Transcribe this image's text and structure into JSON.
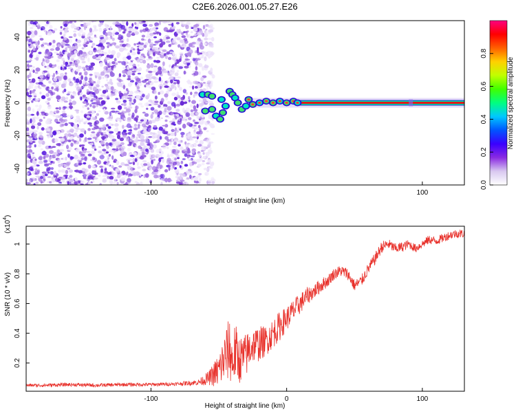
{
  "title": "C2E6.2026.001.05.27.E26",
  "chart_data": [
    {
      "type": "heatmap",
      "name": "spectrogram",
      "xlabel": "Height of straight line (km)",
      "ylabel": "Frequency (Hz)",
      "xlim": [
        -192,
        131
      ],
      "ylim": [
        -50,
        50
      ],
      "x_ticks": [
        -100,
        100
      ],
      "y_ticks": [
        -40,
        -20,
        0,
        20,
        40
      ],
      "description_noise_region_end_km": -57,
      "signal_line_frequency_hz": 0,
      "colorbar": {
        "label": "Normalized spectral amplitude",
        "range": [
          0,
          1
        ],
        "ticks": [
          "0.0",
          "0.2",
          "0.4",
          "0.6",
          "0.8"
        ],
        "colors": [
          "#ffffff",
          "#d8c8f0",
          "#8a2be2",
          "#3a00ff",
          "#0055ff",
          "#00c8ff",
          "#00ff80",
          "#40ff00",
          "#c0ff00",
          "#ffd000",
          "#ff6000",
          "#ff0000",
          "#ff0080"
        ]
      },
      "blobs": [
        {
          "x": -62,
          "y": 5
        },
        {
          "x": -58,
          "y": 5
        },
        {
          "x": -55,
          "y": 4
        },
        {
          "x": -48,
          "y": 2
        },
        {
          "x": -60,
          "y": -5
        },
        {
          "x": -55,
          "y": -4
        },
        {
          "x": -52,
          "y": -8
        },
        {
          "x": -49,
          "y": -10
        },
        {
          "x": -47,
          "y": -6
        },
        {
          "x": -45,
          "y": -2
        },
        {
          "x": -42,
          "y": 7
        },
        {
          "x": -40,
          "y": 5
        },
        {
          "x": -38,
          "y": 3
        },
        {
          "x": -36,
          "y": 0
        },
        {
          "x": -33,
          "y": -4
        },
        {
          "x": -30,
          "y": -2
        },
        {
          "x": -28,
          "y": 2
        },
        {
          "x": -25,
          "y": -1
        },
        {
          "x": -20,
          "y": 0
        },
        {
          "x": -15,
          "y": 1
        },
        {
          "x": -10,
          "y": 0
        },
        {
          "x": -5,
          "y": 1
        },
        {
          "x": 0,
          "y": 0
        },
        {
          "x": 5,
          "y": 1
        },
        {
          "x": 8,
          "y": 0
        }
      ]
    },
    {
      "type": "line",
      "name": "snr",
      "xlabel": "Height of straight line (km)",
      "ylabel": "SNR (10 * v/v)",
      "exponent_label": "(x10",
      "exponent_power": "4",
      "exponent_close": ")",
      "xlim": [
        -192,
        131
      ],
      "ylim": [
        0.01,
        1.12
      ],
      "x_ticks": [
        -100,
        0,
        100
      ],
      "y_ticks": [
        0.2,
        0.4,
        0.6,
        0.8,
        1
      ],
      "series": [
        {
          "name": "SNR",
          "color": "#e8302a",
          "x": [
            -192,
            -180,
            -160,
            -140,
            -120,
            -100,
            -80,
            -65,
            -57,
            -50,
            -45,
            -42,
            -40,
            -38,
            -35,
            -30,
            -27,
            -25,
            -20,
            -15,
            -10,
            -5,
            0,
            5,
            10,
            15,
            20,
            25,
            30,
            35,
            40,
            45,
            50,
            55,
            60,
            65,
            70,
            75,
            80,
            85,
            90,
            95,
            100,
            105,
            110,
            115,
            120,
            125,
            131
          ],
          "values": [
            0.05,
            0.05,
            0.055,
            0.05,
            0.055,
            0.055,
            0.06,
            0.07,
            0.1,
            0.15,
            0.25,
            0.3,
            0.2,
            0.28,
            0.22,
            0.25,
            0.3,
            0.32,
            0.33,
            0.35,
            0.4,
            0.45,
            0.5,
            0.55,
            0.6,
            0.65,
            0.68,
            0.72,
            0.75,
            0.8,
            0.82,
            0.8,
            0.72,
            0.75,
            0.83,
            0.9,
            0.98,
            1.0,
            0.97,
            0.98,
            1.0,
            0.97,
            1.0,
            1.03,
            1.02,
            1.04,
            1.06,
            1.07,
            1.07
          ],
          "noise": [
            0.01,
            0.012,
            0.012,
            0.012,
            0.012,
            0.012,
            0.012,
            0.02,
            0.05,
            0.12,
            0.18,
            0.22,
            0.18,
            0.2,
            0.16,
            0.15,
            0.14,
            0.12,
            0.12,
            0.1,
            0.1,
            0.1,
            0.08,
            0.08,
            0.07,
            0.06,
            0.05,
            0.05,
            0.04,
            0.04,
            0.04,
            0.04,
            0.04,
            0.04,
            0.04,
            0.04,
            0.04,
            0.035,
            0.035,
            0.035,
            0.03,
            0.03,
            0.03,
            0.03,
            0.03,
            0.03,
            0.03,
            0.03,
            0.03
          ]
        }
      ]
    }
  ]
}
